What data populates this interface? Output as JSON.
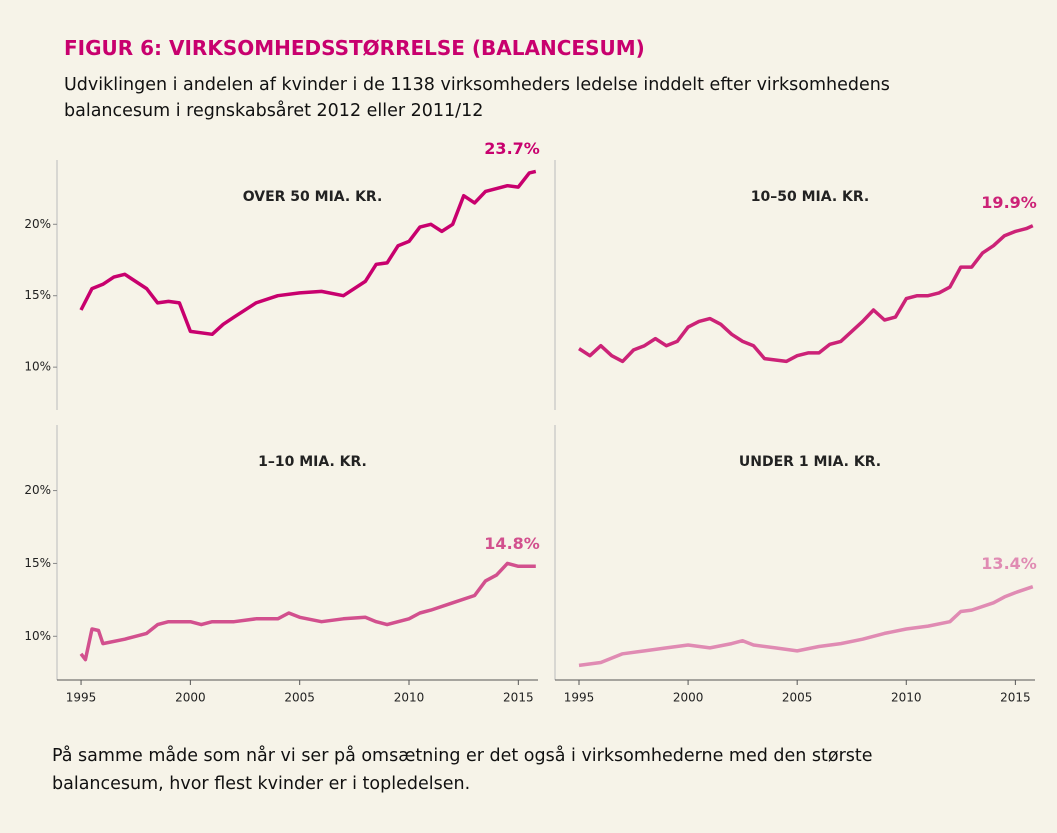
{
  "title": "FIGUR 6: VIRKSOMHEDSSTØRRELSE (BALANCESUM)",
  "subtitle": "Udviklingen i andelen af kvinder i de 1138 virksomheders ledelse inddelt efter virksomhedens balancesum i regnskabsåret 2012 eller 2011/12",
  "note": "På samme måde som når vi ser på omsætning er det også i virksomhederne med den største balancesum, hvor flest kvinder er i topledelsen.",
  "chart_data": [
    {
      "type": "line",
      "title": "OVER 50 MIA. KR.",
      "color": "#c8006e",
      "x": [
        1995,
        1995.5,
        1996,
        1996.5,
        1997,
        1998,
        1998.5,
        1999,
        1999.5,
        2000,
        2001,
        2001.5,
        2002,
        2003,
        2004,
        2005,
        2006,
        2007,
        2008,
        2008.5,
        2009,
        2009.5,
        2010,
        2010.5,
        2011,
        2011.5,
        2012,
        2012.5,
        2013,
        2013.5,
        2014,
        2014.5,
        2015,
        2015.5,
        2015.8
      ],
      "values": [
        14.0,
        15.5,
        15.8,
        16.3,
        16.5,
        15.5,
        14.5,
        14.6,
        14.5,
        12.5,
        12.3,
        13.0,
        13.5,
        14.5,
        15.0,
        15.2,
        15.3,
        15.0,
        16.0,
        17.2,
        17.3,
        18.5,
        18.8,
        19.8,
        20.0,
        19.5,
        20.0,
        22.0,
        21.5,
        22.3,
        22.5,
        22.7,
        22.6,
        23.6,
        23.7
      ],
      "value_labels": [
        null,
        null,
        null,
        null,
        null,
        null,
        null,
        null,
        null,
        null,
        null,
        null,
        null,
        null,
        null,
        null,
        null,
        null,
        null,
        null,
        null,
        null,
        null,
        null,
        null,
        null,
        null,
        null,
        null,
        null,
        null,
        null,
        null,
        null,
        "23.7%"
      ],
      "xlim": [
        1993.9,
        2015.9
      ],
      "ylim": [
        7,
        24.5
      ],
      "yticks": [
        {
          "value": 10,
          "label": "10%"
        },
        {
          "value": 15,
          "label": "15%"
        },
        {
          "value": 20,
          "label": "20%"
        }
      ]
    },
    {
      "type": "line",
      "title": "10–50 MIA. KR.",
      "color": "#cc2277",
      "x": [
        1995,
        1995.5,
        1996,
        1996.5,
        1997,
        1997.5,
        1998,
        1998.5,
        1999,
        1999.5,
        2000,
        2000.5,
        2001,
        2001.5,
        2002,
        2002.5,
        2003,
        2003.5,
        2004,
        2004.5,
        2005,
        2005.5,
        2006,
        2006.5,
        2007,
        2007.5,
        2008,
        2008.5,
        2009,
        2009.5,
        2010,
        2010.5,
        2011,
        2011.5,
        2012,
        2012.5,
        2013,
        2013.5,
        2014,
        2014.5,
        2015,
        2015.5,
        2015.8
      ],
      "values": [
        11.3,
        10.8,
        11.5,
        10.8,
        10.4,
        11.2,
        11.5,
        12.0,
        11.5,
        11.8,
        12.8,
        13.2,
        13.4,
        13.0,
        12.3,
        11.8,
        11.5,
        10.6,
        10.5,
        10.4,
        10.8,
        11.0,
        11.0,
        11.6,
        11.8,
        12.5,
        13.2,
        14.0,
        13.3,
        13.5,
        14.8,
        15.0,
        15.0,
        15.2,
        15.6,
        17.0,
        17.0,
        18.0,
        18.5,
        19.2,
        19.5,
        19.7,
        19.9
      ],
      "value_labels": [
        null,
        null,
        null,
        null,
        null,
        null,
        null,
        null,
        null,
        null,
        null,
        null,
        null,
        null,
        null,
        null,
        null,
        null,
        null,
        null,
        null,
        null,
        null,
        null,
        null,
        null,
        null,
        null,
        null,
        null,
        null,
        null,
        null,
        null,
        null,
        null,
        null,
        null,
        null,
        null,
        null,
        null,
        "19.9%"
      ],
      "xlim": [
        1993.9,
        2015.9
      ],
      "ylim": [
        7,
        24.5
      ]
    },
    {
      "type": "line",
      "title": "1–10 MIA. KR.",
      "color": "#d2508e",
      "x": [
        1995,
        1995.2,
        1995.5,
        1995.8,
        1996,
        1997,
        1998,
        1998.5,
        1999,
        2000,
        2000.5,
        2001,
        2002,
        2003,
        2004,
        2004.5,
        2005,
        2006,
        2007,
        2008,
        2008.5,
        2009,
        2010,
        2010.5,
        2011,
        2012,
        2013,
        2013.5,
        2014,
        2014.5,
        2015,
        2015.8
      ],
      "values": [
        8.8,
        8.4,
        10.5,
        10.4,
        9.5,
        9.8,
        10.2,
        10.8,
        11.0,
        11.0,
        10.8,
        11.0,
        11.0,
        11.2,
        11.2,
        11.6,
        11.3,
        11.0,
        11.2,
        11.3,
        11.0,
        10.8,
        11.2,
        11.6,
        11.8,
        12.3,
        12.8,
        13.8,
        14.2,
        15.0,
        14.8,
        14.8
      ],
      "value_labels": [
        null,
        null,
        null,
        null,
        null,
        null,
        null,
        null,
        null,
        null,
        null,
        null,
        null,
        null,
        null,
        null,
        null,
        null,
        null,
        null,
        null,
        null,
        null,
        null,
        null,
        null,
        null,
        null,
        null,
        null,
        null,
        "14.8%"
      ],
      "xlim": [
        1993.9,
        2015.9
      ],
      "ylim": [
        7,
        24.5
      ],
      "yticks": [
        {
          "value": 10,
          "label": "10%"
        },
        {
          "value": 15,
          "label": "15%"
        },
        {
          "value": 20,
          "label": "20%"
        }
      ],
      "xticks": [
        1995,
        2000,
        2005,
        2010,
        2015
      ]
    },
    {
      "type": "line",
      "title": "UNDER 1 MIA. KR.",
      "color": "#e08bb3",
      "x": [
        1995,
        1996,
        1997,
        1998,
        1999,
        2000,
        2001,
        2002,
        2002.5,
        2003,
        2004,
        2005,
        2006,
        2007,
        2008,
        2009,
        2010,
        2011,
        2012,
        2012.5,
        2013,
        2014,
        2014.5,
        2015,
        2015.8
      ],
      "values": [
        8.0,
        8.2,
        8.8,
        9.0,
        9.2,
        9.4,
        9.2,
        9.5,
        9.7,
        9.4,
        9.2,
        9.0,
        9.3,
        9.5,
        9.8,
        10.2,
        10.5,
        10.7,
        11.0,
        11.7,
        11.8,
        12.3,
        12.7,
        13.0,
        13.4
      ],
      "value_labels": [
        null,
        null,
        null,
        null,
        null,
        null,
        null,
        null,
        null,
        null,
        null,
        null,
        null,
        null,
        null,
        null,
        null,
        null,
        null,
        null,
        null,
        null,
        null,
        null,
        "13.4%"
      ],
      "xlim": [
        1993.9,
        2015.9
      ],
      "ylim": [
        7,
        24.5
      ],
      "xticks": [
        1995,
        2000,
        2005,
        2010,
        2015
      ]
    }
  ]
}
